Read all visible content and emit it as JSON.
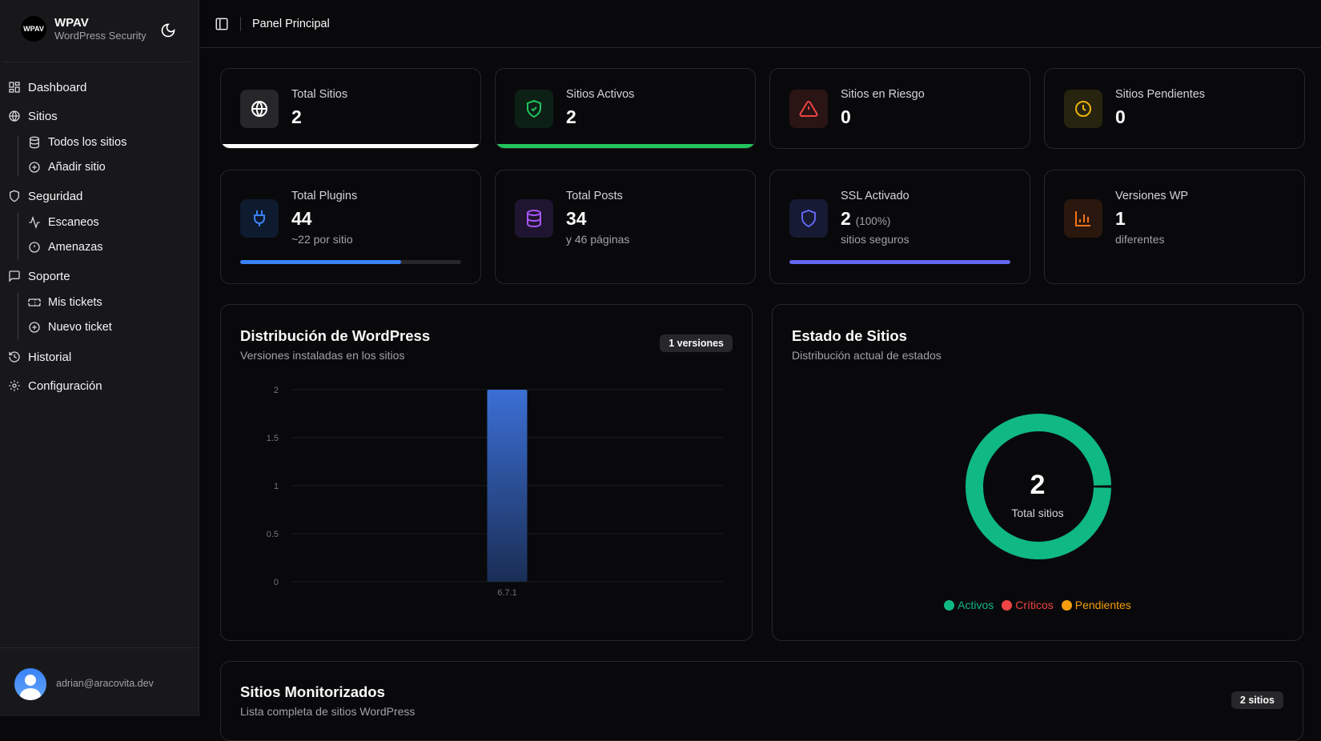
{
  "brand": {
    "logo": "WPAV",
    "title": "WPAV",
    "subtitle": "WordPress Security"
  },
  "sidebar": {
    "items": [
      {
        "label": "Dashboard",
        "icon": "dashboard-icon"
      },
      {
        "label": "Sitios",
        "icon": "globe-icon"
      },
      {
        "label": "Todos los sitios",
        "icon": "database-icon"
      },
      {
        "label": "Añadir sitio",
        "icon": "plus-circle-icon"
      },
      {
        "label": "Seguridad",
        "icon": "shield-icon"
      },
      {
        "label": "Escaneos",
        "icon": "activity-icon"
      },
      {
        "label": "Amenazas",
        "icon": "alert-circle-icon"
      },
      {
        "label": "Soporte",
        "icon": "message-square-icon"
      },
      {
        "label": "Mis tickets",
        "icon": "ticket-icon"
      },
      {
        "label": "Nuevo ticket",
        "icon": "plus-circle-icon"
      },
      {
        "label": "Historial",
        "icon": "history-icon"
      },
      {
        "label": "Configuración",
        "icon": "settings-icon"
      }
    ]
  },
  "user": {
    "email": "adrian@aracovita.dev"
  },
  "header": {
    "title": "Panel Principal"
  },
  "stats": [
    {
      "label": "Total Sitios",
      "value": "2",
      "color": "#ffffff",
      "progress": 100
    },
    {
      "label": "Sitios Activos",
      "value": "2",
      "color": "#22c55e",
      "progress": 100
    },
    {
      "label": "Sitios en Riesgo",
      "value": "0",
      "color": "#ef4444"
    },
    {
      "label": "Sitios Pendientes",
      "value": "0",
      "color": "#eab308"
    },
    {
      "label": "Total Plugins",
      "value": "44",
      "sub": "~22 por sitio",
      "color": "#3b82f6",
      "progress": 73
    },
    {
      "label": "Total Posts",
      "value": "34",
      "sub": "y 46 páginas",
      "color": "#a855f7"
    },
    {
      "label": "SSL Activado",
      "value": "2",
      "extra": "(100%)",
      "sub": "sitios seguros",
      "color": "#6366f1",
      "progress": 100
    },
    {
      "label": "Versiones WP",
      "value": "1",
      "sub": "diferentes",
      "color": "#f97316"
    }
  ],
  "wp_chart": {
    "title": "Distribución de WordPress",
    "subtitle": "Versiones instaladas en los sitios",
    "badge": "1 versiones"
  },
  "status_chart": {
    "title": "Estado de Sitios",
    "subtitle": "Distribución actual de estados",
    "center_value": "2",
    "center_label": "Total sitios"
  },
  "monitored": {
    "title": "Sitios Monitorizados",
    "subtitle": "Lista completa de sitios WordPress",
    "badge": "2 sitios"
  },
  "chart_data": [
    {
      "type": "bar",
      "categories": [
        "6.7.1"
      ],
      "values": [
        2
      ],
      "ylim": [
        0,
        2
      ],
      "yticks": [
        "0",
        "0.5",
        "1",
        "1.5",
        "2"
      ],
      "grid": true,
      "color": "#3b6fd4"
    },
    {
      "type": "pie",
      "categories": [
        "Activos",
        "Críticos",
        "Pendientes"
      ],
      "values": [
        2,
        0,
        0
      ],
      "colors": [
        "#10b981",
        "#ef4444",
        "#f59e0b"
      ],
      "legend": "bottom"
    }
  ]
}
